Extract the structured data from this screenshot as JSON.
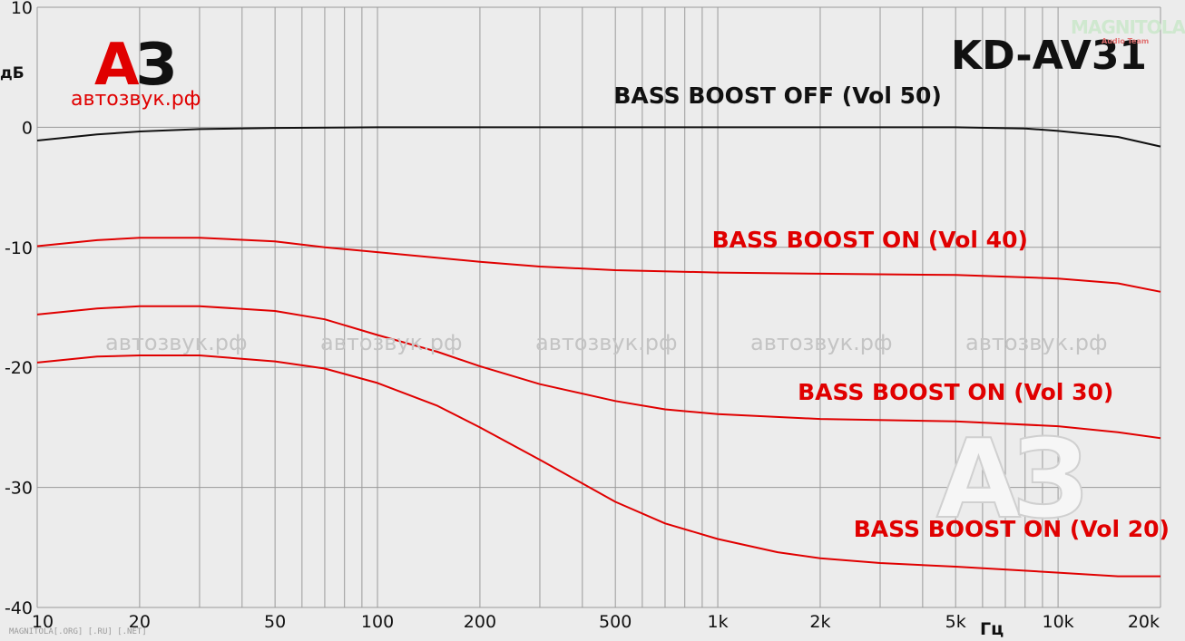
{
  "chart_data": {
    "type": "line",
    "xscale": "log",
    "xlim": [
      10,
      20000
    ],
    "ylim": [
      -40,
      10
    ],
    "ylabel": "дБ",
    "xlabel": "Гц",
    "grid": true,
    "y_ticks": [
      10,
      0,
      -10,
      -20,
      -30,
      -40
    ],
    "x_ticks": [
      {
        "value": 10,
        "label": "10"
      },
      {
        "value": 20,
        "label": "20"
      },
      {
        "value": 50,
        "label": "50"
      },
      {
        "value": 100,
        "label": "100"
      },
      {
        "value": 200,
        "label": "200"
      },
      {
        "value": 500,
        "label": "500"
      },
      {
        "value": 1000,
        "label": "1k"
      },
      {
        "value": 2000,
        "label": "2k"
      },
      {
        "value": 5000,
        "label": "5k"
      },
      {
        "value": 10000,
        "label": "10k"
      },
      {
        "value": 20000,
        "label": "20k"
      }
    ],
    "series": [
      {
        "name": "BASS BOOST OFF (Vol 50)",
        "color": "#111111",
        "label_anchor": {
          "x": 1500,
          "y": 2
        },
        "points": [
          [
            10,
            -1.1
          ],
          [
            15,
            -0.6
          ],
          [
            20,
            -0.35
          ],
          [
            30,
            -0.15
          ],
          [
            50,
            -0.05
          ],
          [
            100,
            0
          ],
          [
            200,
            0
          ],
          [
            500,
            0
          ],
          [
            1000,
            0
          ],
          [
            2000,
            0
          ],
          [
            5000,
            0
          ],
          [
            8000,
            -0.1
          ],
          [
            10000,
            -0.3
          ],
          [
            15000,
            -0.8
          ],
          [
            20000,
            -1.6
          ]
        ]
      },
      {
        "name": "BASS BOOST ON (Vol 40)",
        "color": "#e00000",
        "label_anchor": {
          "x": 2800,
          "y": -10
        },
        "points": [
          [
            10,
            -9.9
          ],
          [
            15,
            -9.4
          ],
          [
            20,
            -9.2
          ],
          [
            30,
            -9.2
          ],
          [
            50,
            -9.5
          ],
          [
            70,
            -10
          ],
          [
            100,
            -10.4
          ],
          [
            200,
            -11.2
          ],
          [
            300,
            -11.6
          ],
          [
            500,
            -11.9
          ],
          [
            1000,
            -12.1
          ],
          [
            2000,
            -12.2
          ],
          [
            5000,
            -12.3
          ],
          [
            10000,
            -12.6
          ],
          [
            15000,
            -13
          ],
          [
            20000,
            -13.7
          ]
        ]
      },
      {
        "name": "BASS BOOST ON (Vol 30)",
        "color": "#e00000",
        "label_anchor": {
          "x": 5000,
          "y": -22.7
        },
        "points": [
          [
            10,
            -15.6
          ],
          [
            15,
            -15.1
          ],
          [
            20,
            -14.9
          ],
          [
            30,
            -14.9
          ],
          [
            50,
            -15.3
          ],
          [
            70,
            -16
          ],
          [
            100,
            -17.3
          ],
          [
            150,
            -18.7
          ],
          [
            200,
            -19.9
          ],
          [
            300,
            -21.4
          ],
          [
            500,
            -22.8
          ],
          [
            700,
            -23.5
          ],
          [
            1000,
            -23.9
          ],
          [
            2000,
            -24.3
          ],
          [
            5000,
            -24.5
          ],
          [
            10000,
            -24.9
          ],
          [
            15000,
            -25.4
          ],
          [
            20000,
            -25.9
          ]
        ]
      },
      {
        "name": "BASS BOOST ON (Vol 20)",
        "color": "#e00000",
        "label_anchor": {
          "x": 7300,
          "y": -34.1
        },
        "points": [
          [
            10,
            -19.6
          ],
          [
            15,
            -19.1
          ],
          [
            20,
            -19
          ],
          [
            30,
            -19
          ],
          [
            50,
            -19.5
          ],
          [
            70,
            -20.1
          ],
          [
            100,
            -21.3
          ],
          [
            150,
            -23.2
          ],
          [
            200,
            -25
          ],
          [
            300,
            -27.7
          ],
          [
            500,
            -31.2
          ],
          [
            700,
            -33
          ],
          [
            1000,
            -34.3
          ],
          [
            1500,
            -35.4
          ],
          [
            2000,
            -35.9
          ],
          [
            3000,
            -36.3
          ],
          [
            5000,
            -36.6
          ],
          [
            10000,
            -37.1
          ],
          [
            15000,
            -37.4
          ],
          [
            20000,
            -37.4
          ]
        ]
      }
    ]
  },
  "branding": {
    "logo_a": "А",
    "logo_z": "З",
    "site": "автозвук.рф",
    "model": "KD-AV31",
    "mag_logo": "MAGNITOLA",
    "mag_sub": "Audio Team",
    "big_watermark": "АЗ",
    "watermark": "автозвук.рф",
    "footer": "MAGNITOLA[.ORG] [.RU] [.NET]"
  }
}
